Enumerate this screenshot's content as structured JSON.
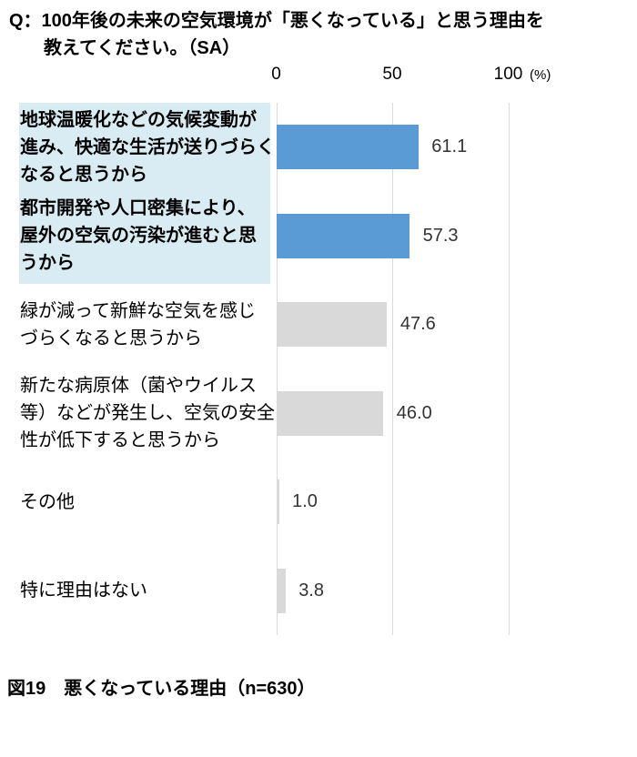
{
  "title": {
    "line1": "Q：100年後の未来の空気環境が「悪くなっている」と思う理由を",
    "line2": "教えてください。（SA）"
  },
  "axis": {
    "ticks": [
      "0",
      "50",
      "100"
    ],
    "unit": "(%)"
  },
  "chart_data": {
    "type": "bar",
    "orientation": "horizontal",
    "title": "Q：100年後の未来の空気環境が「悪くなっている」と思う理由を教えてください。（SA）",
    "xlabel": "(%)",
    "xlim": [
      0,
      100
    ],
    "tick_values": [
      0,
      50,
      100
    ],
    "grid": true,
    "categories": [
      "地球温暖化などの気候変動が\n進み、快適な生活が送りづらく\nなると思うから",
      "都市開発や人口密集により、\n屋外の空気の汚染が進むと思\nうから",
      "緑が減って新鮮な空気を感じ\nづらくなると思うから",
      "新たな病原体（菌やウイルス\n等）などが発生し、空気の安全\n性が低下すると思うから",
      "その他",
      "特に理由はない"
    ],
    "values": [
      61.1,
      57.3,
      47.6,
      46.0,
      1.0,
      3.8
    ],
    "value_labels": [
      "61.1",
      "57.3",
      "47.6",
      "46.0",
      "1.0",
      "3.8"
    ],
    "highlighted": [
      true,
      true,
      false,
      false,
      false,
      false
    ],
    "colors": {
      "highlighted_bar": "#5b9bd5",
      "normal_bar": "#d9d9d9",
      "label_highlight_bg": "#d9ebf3",
      "gridline": "#d9d9d9"
    }
  },
  "caption": "図19　悪くなっている理由（n=630）"
}
